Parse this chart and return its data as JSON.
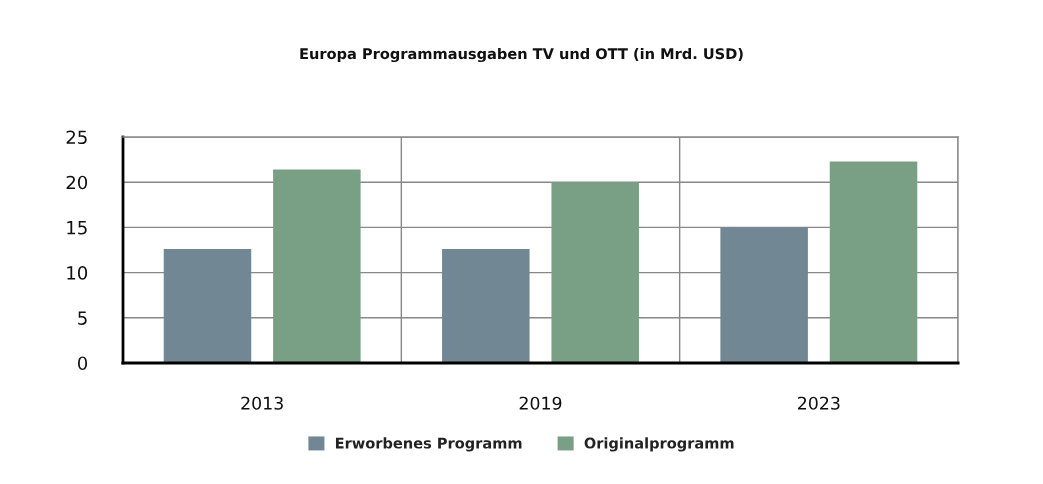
{
  "chart_data": {
    "type": "bar",
    "title": "Europa Programmausgaben TV und OTT (in Mrd. USD)",
    "categories": [
      "2013",
      "2019",
      "2023"
    ],
    "series": [
      {
        "name": "Erworbenes Programm",
        "color": "#728794",
        "values": [
          12.6,
          12.6,
          15
        ]
      },
      {
        "name": "Originalprogramm",
        "color": "#79a085",
        "values": [
          21.4,
          20,
          22.3
        ]
      }
    ],
    "ylim": [
      0,
      25
    ],
    "yticks": [
      0,
      5,
      10,
      15,
      20,
      25
    ],
    "grid": true,
    "legend": "bottom"
  }
}
